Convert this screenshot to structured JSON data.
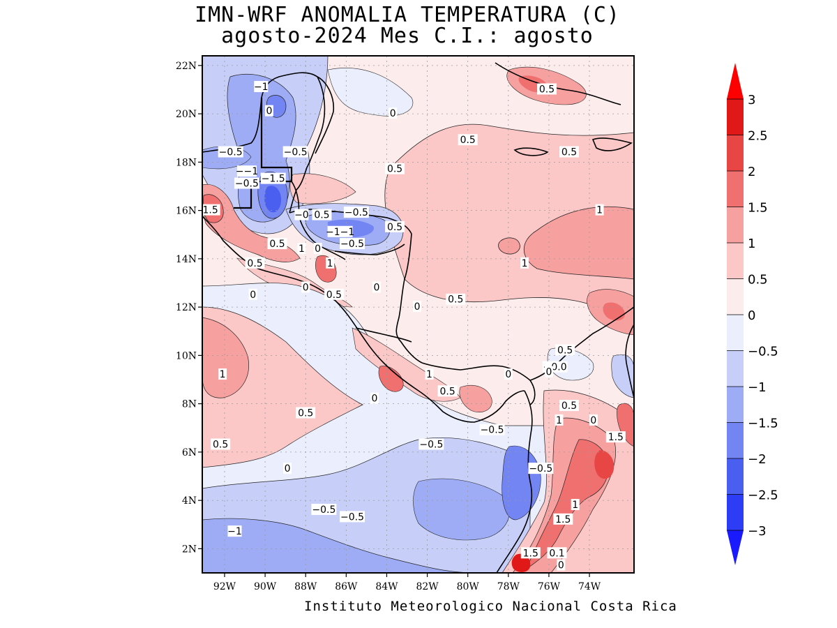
{
  "title_line1": "IMN-WRF  ANOMALIA TEMPERATURA (C)",
  "title_line2": "agosto-2024 Mes C.I.: agosto",
  "footer": "Instituto Meteorologico Nacional Costa Rica",
  "map": {
    "lon_range": [
      -93.1,
      -71.8
    ],
    "lat_range": [
      1.0,
      22.4
    ],
    "lat_ticks": [
      {
        "value": 22,
        "label": "22N"
      },
      {
        "value": 20,
        "label": "20N"
      },
      {
        "value": 18,
        "label": "18N"
      },
      {
        "value": 16,
        "label": "16N"
      },
      {
        "value": 14,
        "label": "14N"
      },
      {
        "value": 12,
        "label": "12N"
      },
      {
        "value": 10,
        "label": "10N"
      },
      {
        "value": 8,
        "label": "8N"
      },
      {
        "value": 6,
        "label": "6N"
      },
      {
        "value": 4,
        "label": "4N"
      },
      {
        "value": 2,
        "label": "2N"
      }
    ],
    "lon_ticks": [
      {
        "value": -92,
        "label": "92W"
      },
      {
        "value": -90,
        "label": "90W"
      },
      {
        "value": -88,
        "label": "88W"
      },
      {
        "value": -86,
        "label": "86W"
      },
      {
        "value": -84,
        "label": "84W"
      },
      {
        "value": -82,
        "label": "82W"
      },
      {
        "value": -80,
        "label": "80W"
      },
      {
        "value": -78,
        "label": "78W"
      },
      {
        "value": -76,
        "label": "76W"
      },
      {
        "value": -74,
        "label": "74W"
      }
    ],
    "gridlines": true
  },
  "colorbar": {
    "levels": [
      {
        "value": -3,
        "label": "−3"
      },
      {
        "value": -2.5,
        "label": "−2.5"
      },
      {
        "value": -2,
        "label": "−2"
      },
      {
        "value": -1.5,
        "label": "−1.5"
      },
      {
        "value": -1,
        "label": "−1"
      },
      {
        "value": -0.5,
        "label": "−0.5"
      },
      {
        "value": 0,
        "label": "0"
      },
      {
        "value": 0.5,
        "label": "0.5"
      },
      {
        "value": 1,
        "label": "1"
      },
      {
        "value": 1.5,
        "label": "1.5"
      },
      {
        "value": 2,
        "label": "2"
      },
      {
        "value": 2.5,
        "label": "2.5"
      },
      {
        "value": 3,
        "label": "3"
      }
    ],
    "colors": [
      "#1a1aff",
      "#2d3cf5",
      "#4a5ef0",
      "#7385f2",
      "#9eacf5",
      "#c7cff9",
      "#ebeefd",
      "#fdecec",
      "#fbc7c7",
      "#f7a0a0",
      "#f07070",
      "#e84545",
      "#e01818",
      "#ff0000"
    ],
    "bottom_color": "#1a1aff",
    "top_color": "#ff0000"
  },
  "contour_labels": [
    {
      "lon": -90.2,
      "lat": 21.1,
      "text": "−1"
    },
    {
      "lon": -89.8,
      "lat": 20.1,
      "text": "0"
    },
    {
      "lon": -91.7,
      "lat": 18.4,
      "text": "−0.5"
    },
    {
      "lon": -88.5,
      "lat": 18.4,
      "text": "−0.5"
    },
    {
      "lon": -90.9,
      "lat": 17.6,
      "text": "−−1"
    },
    {
      "lon": -90.9,
      "lat": 17.1,
      "text": "−0.5"
    },
    {
      "lon": -89.6,
      "lat": 17.3,
      "text": "−1.5"
    },
    {
      "lon": -92.7,
      "lat": 16.0,
      "text": "1.5"
    },
    {
      "lon": -88.2,
      "lat": 15.8,
      "text": "−0"
    },
    {
      "lon": -87.2,
      "lat": 15.8,
      "text": "0.5"
    },
    {
      "lon": -85.5,
      "lat": 15.9,
      "text": "−0.5"
    },
    {
      "lon": -86.3,
      "lat": 15.1,
      "text": "−1−1"
    },
    {
      "lon": -85.7,
      "lat": 14.6,
      "text": "−0.5"
    },
    {
      "lon": -83.6,
      "lat": 15.3,
      "text": "0.5"
    },
    {
      "lon": -89.4,
      "lat": 14.6,
      "text": "0.5"
    },
    {
      "lon": -88.2,
      "lat": 14.4,
      "text": "1"
    },
    {
      "lon": -87.4,
      "lat": 14.4,
      "text": "0"
    },
    {
      "lon": -90.5,
      "lat": 13.8,
      "text": "0.5"
    },
    {
      "lon": -86.8,
      "lat": 13.8,
      "text": "1"
    },
    {
      "lon": -88.0,
      "lat": 12.8,
      "text": "0"
    },
    {
      "lon": -90.6,
      "lat": 12.5,
      "text": "0"
    },
    {
      "lon": -86.6,
      "lat": 12.5,
      "text": "0.5"
    },
    {
      "lon": -84.5,
      "lat": 12.8,
      "text": "0"
    },
    {
      "lon": -82.5,
      "lat": 12.0,
      "text": "0"
    },
    {
      "lon": -80.6,
      "lat": 12.3,
      "text": "0.5"
    },
    {
      "lon": -83.6,
      "lat": 17.7,
      "text": "0.5"
    },
    {
      "lon": -80.0,
      "lat": 18.9,
      "text": "0.5"
    },
    {
      "lon": -83.7,
      "lat": 20.0,
      "text": "0"
    },
    {
      "lon": -76.1,
      "lat": 21.0,
      "text": "0.5"
    },
    {
      "lon": -75.0,
      "lat": 18.4,
      "text": "0.5"
    },
    {
      "lon": -73.5,
      "lat": 16.0,
      "text": "1"
    },
    {
      "lon": -77.2,
      "lat": 13.8,
      "text": "1"
    },
    {
      "lon": -75.2,
      "lat": 10.2,
      "text": "0.5"
    },
    {
      "lon": -75.7,
      "lat": 9.5,
      "text": "−0.0"
    },
    {
      "lon": -76.0,
      "lat": 9.3,
      "text": "0"
    },
    {
      "lon": -78.0,
      "lat": 9.2,
      "text": "0"
    },
    {
      "lon": -81.0,
      "lat": 8.5,
      "text": "0.5"
    },
    {
      "lon": -81.9,
      "lat": 9.2,
      "text": "1"
    },
    {
      "lon": -84.6,
      "lat": 8.2,
      "text": "0"
    },
    {
      "lon": -92.1,
      "lat": 9.2,
      "text": "1"
    },
    {
      "lon": -88.0,
      "lat": 7.6,
      "text": "0.5"
    },
    {
      "lon": -92.2,
      "lat": 6.3,
      "text": "0.5"
    },
    {
      "lon": -75.0,
      "lat": 7.9,
      "text": "0.5"
    },
    {
      "lon": -75.5,
      "lat": 7.3,
      "text": "1"
    },
    {
      "lon": -73.8,
      "lat": 7.3,
      "text": "0"
    },
    {
      "lon": -72.7,
      "lat": 6.6,
      "text": "1.5"
    },
    {
      "lon": -78.8,
      "lat": 6.9,
      "text": "−0.5"
    },
    {
      "lon": -81.8,
      "lat": 6.3,
      "text": "−0.5"
    },
    {
      "lon": -88.9,
      "lat": 5.3,
      "text": "0"
    },
    {
      "lon": -76.4,
      "lat": 5.3,
      "text": "−0.5"
    },
    {
      "lon": -74.7,
      "lat": 3.8,
      "text": "1"
    },
    {
      "lon": -75.3,
      "lat": 3.2,
      "text": "1.5"
    },
    {
      "lon": -87.1,
      "lat": 3.6,
      "text": "−0.5"
    },
    {
      "lon": -85.7,
      "lat": 3.3,
      "text": "−0.5"
    },
    {
      "lon": -91.5,
      "lat": 2.7,
      "text": "−1"
    },
    {
      "lon": -76.9,
      "lat": 1.8,
      "text": "1.5"
    },
    {
      "lon": -75.6,
      "lat": 1.8,
      "text": "0.1"
    },
    {
      "lon": -75.4,
      "lat": 1.3,
      "text": "0"
    }
  ]
}
